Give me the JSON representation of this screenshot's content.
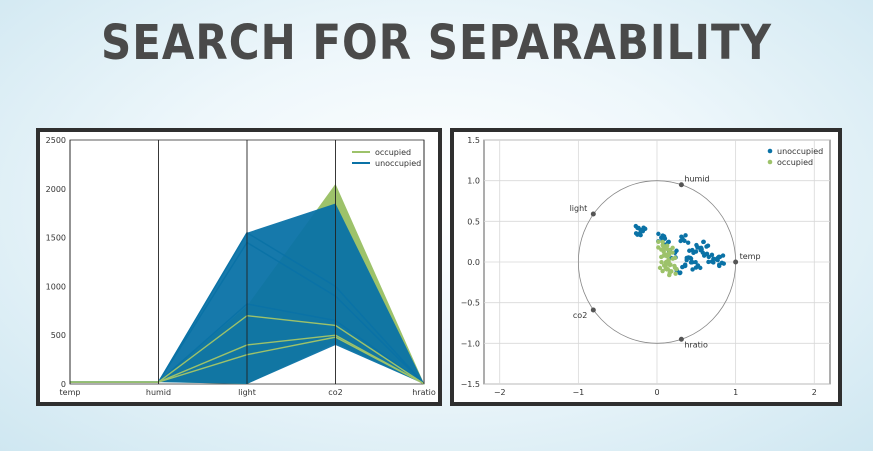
{
  "title": "SEARCH FOR SEPARABILITY",
  "colors": {
    "occupied": "#9dc26a",
    "unoccupied": "#0a72a6",
    "title": "#4a4a4a",
    "frame": "#2f2f2f"
  },
  "chart_data": [
    {
      "type": "line",
      "subtype": "parallel-coordinates",
      "categories": [
        "temp",
        "humid",
        "light",
        "co2",
        "hratio"
      ],
      "ylim": [
        0,
        2500
      ],
      "yticks": [
        "0",
        "500",
        "1000",
        "1500",
        "2000",
        "2500"
      ],
      "legend": {
        "position": "top-right",
        "entries": [
          "occupied",
          "unoccupied"
        ]
      },
      "series": [
        {
          "name": "occupied",
          "values_envelope": {
            "upper": [
              22,
              22,
              800,
              2050,
              5
            ],
            "lower": [
              20,
              20,
              0,
              420,
              0
            ]
          }
        },
        {
          "name": "unoccupied",
          "values_envelope": {
            "upper": [
              22,
              22,
              1550,
              1850,
              5
            ],
            "lower": [
              19,
              19,
              0,
              400,
              0
            ]
          }
        }
      ]
    },
    {
      "type": "scatter",
      "subtype": "radviz",
      "xlim": [
        -2.2,
        2.2
      ],
      "ylim": [
        -1.5,
        1.5
      ],
      "xticks": [
        "−2",
        "−1",
        "0",
        "1",
        "2"
      ],
      "yticks": [
        "1.5",
        "1.0",
        "0.5",
        "0.0",
        "−0.5",
        "−1.0",
        "−1.5"
      ],
      "anchors": [
        {
          "label": "temp",
          "x": 1.0,
          "y": 0.0
        },
        {
          "label": "humid",
          "x": 0.31,
          "y": 0.95
        },
        {
          "label": "light",
          "x": -0.81,
          "y": 0.59
        },
        {
          "label": "co2",
          "x": -0.81,
          "y": -0.59
        },
        {
          "label": "hratio",
          "x": 0.31,
          "y": -0.95
        }
      ],
      "legend": {
        "position": "top-right",
        "entries": [
          "unoccupied",
          "occupied"
        ]
      },
      "series": [
        {
          "name": "unoccupied",
          "points": [
            [
              0.05,
              0.3
            ],
            [
              0.1,
              0.25
            ],
            [
              -0.22,
              0.4
            ],
            [
              -0.2,
              0.38
            ],
            [
              0.35,
              0.28
            ],
            [
              0.55,
              0.2
            ],
            [
              0.65,
              0.05
            ],
            [
              0.5,
              -0.05
            ],
            [
              0.3,
              -0.1
            ],
            [
              0.2,
              0.1
            ],
            [
              0.45,
              0.1
            ],
            [
              0.75,
              0.0
            ],
            [
              0.8,
              0.03
            ],
            [
              0.6,
              0.15
            ],
            [
              0.4,
              0.0
            ]
          ]
        },
        {
          "name": "occupied",
          "points": [
            [
              0.05,
              0.2
            ],
            [
              0.1,
              0.05
            ],
            [
              0.08,
              -0.05
            ],
            [
              0.15,
              0.15
            ],
            [
              0.12,
              -0.08
            ],
            [
              0.18,
              0.0
            ],
            [
              0.2,
              -0.12
            ],
            [
              0.1,
              0.12
            ]
          ]
        }
      ]
    }
  ]
}
